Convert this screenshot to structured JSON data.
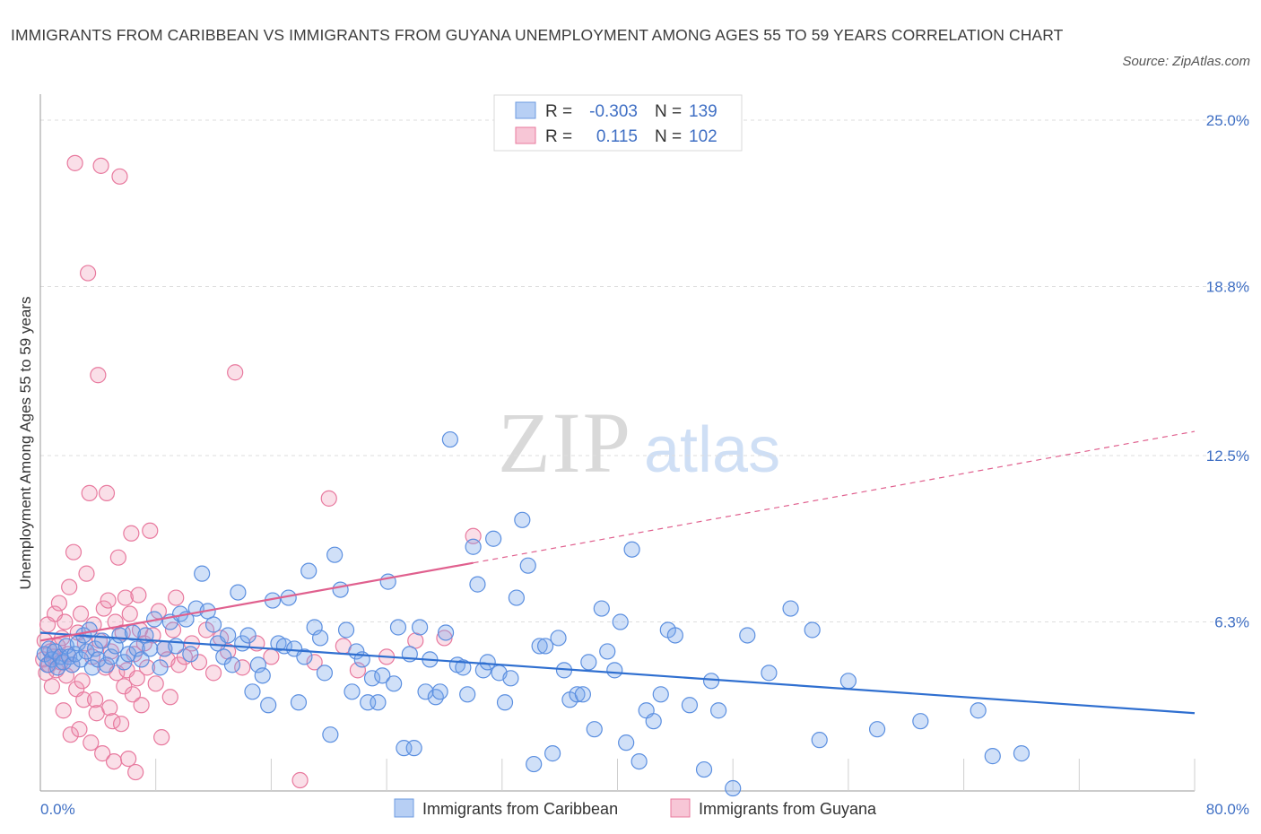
{
  "title": "IMMIGRANTS FROM CARIBBEAN VS IMMIGRANTS FROM GUYANA UNEMPLOYMENT AMONG AGES 55 TO 59 YEARS CORRELATION CHART",
  "source": "Source: ZipAtlas.com",
  "watermark": {
    "zip": "ZIP",
    "atlas": "atlas"
  },
  "colors": {
    "caribbean": "#5b8fe0",
    "caribbean_fill": "rgba(120,165,235,0.35)",
    "caribbean_line": "#2f6fd0",
    "guyana": "#e8799e",
    "guyana_fill": "rgba(240,150,180,0.30)",
    "guyana_line": "#e0608e",
    "tick": "#3f6fc4"
  },
  "legend": {
    "r_label": "R =",
    "n_label": "N =",
    "caribbean": {
      "r": "-0.303",
      "n": "139"
    },
    "guyana": {
      "r": "0.115",
      "n": "102"
    }
  },
  "chart_data": {
    "type": "scatter",
    "xlabel": "",
    "ylabel": "Unemployment Among Ages 55 to 59 years",
    "xlim": [
      0,
      80
    ],
    "ylim": [
      0,
      25
    ],
    "x_tick_labels": [
      "0.0%",
      "80.0%"
    ],
    "y_ticks": [
      {
        "value": 6.3,
        "label": "6.3%"
      },
      {
        "value": 12.5,
        "label": "12.5%"
      },
      {
        "value": 18.8,
        "label": "18.8%"
      },
      {
        "value": 25.0,
        "label": "25.0%"
      }
    ],
    "grid": true,
    "legend_position": "top-center",
    "series": [
      {
        "name": "Immigrants from Caribbean",
        "r": -0.303,
        "n": 139,
        "trend": {
          "x": [
            0,
            80
          ],
          "y": [
            5.9,
            2.9
          ]
        },
        "points": [
          [
            0.3,
            5.1
          ],
          [
            0.5,
            4.7
          ],
          [
            0.6,
            5.3
          ],
          [
            0.8,
            4.9
          ],
          [
            1.0,
            5.2
          ],
          [
            1.2,
            4.6
          ],
          [
            1.4,
            5.0
          ],
          [
            1.6,
            4.8
          ],
          [
            1.8,
            5.4
          ],
          [
            2.0,
            5.0
          ],
          [
            2.2,
            4.7
          ],
          [
            2.4,
            5.1
          ],
          [
            2.6,
            5.5
          ],
          [
            2.8,
            4.9
          ],
          [
            3.0,
            5.8
          ],
          [
            3.2,
            5.2
          ],
          [
            3.4,
            6.0
          ],
          [
            3.6,
            4.6
          ],
          [
            3.8,
            5.3
          ],
          [
            4.0,
            4.9
          ],
          [
            4.3,
            5.6
          ],
          [
            4.6,
            4.7
          ],
          [
            4.9,
            5.0
          ],
          [
            5.2,
            5.4
          ],
          [
            5.5,
            5.8
          ],
          [
            5.8,
            4.8
          ],
          [
            6.1,
            5.1
          ],
          [
            6.4,
            5.9
          ],
          [
            6.7,
            5.3
          ],
          [
            7.0,
            4.9
          ],
          [
            7.3,
            5.8
          ],
          [
            7.6,
            5.3
          ],
          [
            7.9,
            6.4
          ],
          [
            8.3,
            4.6
          ],
          [
            8.6,
            5.3
          ],
          [
            9.0,
            6.3
          ],
          [
            9.4,
            5.4
          ],
          [
            9.7,
            6.6
          ],
          [
            10.1,
            6.4
          ],
          [
            10.4,
            5.1
          ],
          [
            10.8,
            6.8
          ],
          [
            11.2,
            8.1
          ],
          [
            11.6,
            6.7
          ],
          [
            12.0,
            6.2
          ],
          [
            12.3,
            5.5
          ],
          [
            12.7,
            5.0
          ],
          [
            13.0,
            5.8
          ],
          [
            13.3,
            4.7
          ],
          [
            13.7,
            7.4
          ],
          [
            14.0,
            5.5
          ],
          [
            14.4,
            5.8
          ],
          [
            14.7,
            3.7
          ],
          [
            15.1,
            4.7
          ],
          [
            15.4,
            4.3
          ],
          [
            15.8,
            3.2
          ],
          [
            16.1,
            7.1
          ],
          [
            16.5,
            5.5
          ],
          [
            16.9,
            5.4
          ],
          [
            17.2,
            7.2
          ],
          [
            17.6,
            5.3
          ],
          [
            17.9,
            3.3
          ],
          [
            18.3,
            5.0
          ],
          [
            18.6,
            8.2
          ],
          [
            19.0,
            6.1
          ],
          [
            19.4,
            5.7
          ],
          [
            19.7,
            4.4
          ],
          [
            20.1,
            2.1
          ],
          [
            20.4,
            8.8
          ],
          [
            20.8,
            7.5
          ],
          [
            21.2,
            6.0
          ],
          [
            21.6,
            3.7
          ],
          [
            21.9,
            5.2
          ],
          [
            22.3,
            4.9
          ],
          [
            22.7,
            3.3
          ],
          [
            23.0,
            4.2
          ],
          [
            23.4,
            3.3
          ],
          [
            23.7,
            4.3
          ],
          [
            24.1,
            7.8
          ],
          [
            24.5,
            4.0
          ],
          [
            24.8,
            6.1
          ],
          [
            25.2,
            1.6
          ],
          [
            25.6,
            5.1
          ],
          [
            25.9,
            1.6
          ],
          [
            26.3,
            6.1
          ],
          [
            26.7,
            3.7
          ],
          [
            27.0,
            4.9
          ],
          [
            27.4,
            3.5
          ],
          [
            27.7,
            3.7
          ],
          [
            28.1,
            5.9
          ],
          [
            28.4,
            13.1
          ],
          [
            28.9,
            4.7
          ],
          [
            29.3,
            4.6
          ],
          [
            29.6,
            3.6
          ],
          [
            30.0,
            9.1
          ],
          [
            30.3,
            7.7
          ],
          [
            30.7,
            4.5
          ],
          [
            31.0,
            4.8
          ],
          [
            31.4,
            9.4
          ],
          [
            31.8,
            4.4
          ],
          [
            32.2,
            3.3
          ],
          [
            32.6,
            4.2
          ],
          [
            33.0,
            7.2
          ],
          [
            33.4,
            10.1
          ],
          [
            33.8,
            8.4
          ],
          [
            34.2,
            1.0
          ],
          [
            34.6,
            5.4
          ],
          [
            35.0,
            5.4
          ],
          [
            35.5,
            1.4
          ],
          [
            35.9,
            5.7
          ],
          [
            36.3,
            4.5
          ],
          [
            36.7,
            3.4
          ],
          [
            37.2,
            3.6
          ],
          [
            37.6,
            3.6
          ],
          [
            38.0,
            4.8
          ],
          [
            38.4,
            2.3
          ],
          [
            38.9,
            6.8
          ],
          [
            39.3,
            5.2
          ],
          [
            39.8,
            4.5
          ],
          [
            40.2,
            6.3
          ],
          [
            40.6,
            1.8
          ],
          [
            41.0,
            9.0
          ],
          [
            41.5,
            1.1
          ],
          [
            42.0,
            3.0
          ],
          [
            42.5,
            2.6
          ],
          [
            43.0,
            3.6
          ],
          [
            43.5,
            6.0
          ],
          [
            44.0,
            5.8
          ],
          [
            45.0,
            3.2
          ],
          [
            46.0,
            0.8
          ],
          [
            46.5,
            4.1
          ],
          [
            47.0,
            3.0
          ],
          [
            48.0,
            0.1
          ],
          [
            49.0,
            5.8
          ],
          [
            50.5,
            4.4
          ],
          [
            52.0,
            6.8
          ],
          [
            53.5,
            6.0
          ],
          [
            54.0,
            1.9
          ],
          [
            56.0,
            4.1
          ],
          [
            58.0,
            2.3
          ],
          [
            61.0,
            2.6
          ],
          [
            65.0,
            3.0
          ],
          [
            66.0,
            1.3
          ],
          [
            68.0,
            1.4
          ]
        ]
      },
      {
        "name": "Immigrants from Guyana",
        "r": 0.115,
        "n": 102,
        "trend_solid": {
          "x": [
            0,
            30
          ],
          "y": [
            5.6,
            8.5
          ]
        },
        "trend_dashed": {
          "x": [
            30,
            80
          ],
          "y": [
            8.5,
            13.4
          ]
        },
        "points": [
          [
            0.2,
            4.9
          ],
          [
            0.3,
            5.6
          ],
          [
            0.4,
            4.4
          ],
          [
            0.5,
            6.2
          ],
          [
            0.6,
            4.7
          ],
          [
            0.7,
            5.2
          ],
          [
            0.8,
            3.9
          ],
          [
            0.9,
            5.0
          ],
          [
            1.0,
            6.6
          ],
          [
            1.1,
            4.5
          ],
          [
            1.2,
            5.4
          ],
          [
            1.3,
            7.0
          ],
          [
            1.4,
            4.8
          ],
          [
            1.5,
            5.7
          ],
          [
            1.6,
            3.0
          ],
          [
            1.7,
            6.3
          ],
          [
            1.8,
            4.3
          ],
          [
            1.9,
            5.1
          ],
          [
            2.0,
            7.6
          ],
          [
            2.1,
            2.1
          ],
          [
            2.2,
            4.7
          ],
          [
            2.3,
            8.9
          ],
          [
            2.4,
            23.4
          ],
          [
            2.5,
            3.8
          ],
          [
            2.6,
            5.9
          ],
          [
            2.7,
            2.3
          ],
          [
            2.8,
            6.6
          ],
          [
            2.9,
            4.1
          ],
          [
            3.0,
            3.4
          ],
          [
            3.1,
            5.5
          ],
          [
            3.2,
            8.1
          ],
          [
            3.3,
            19.3
          ],
          [
            3.4,
            11.1
          ],
          [
            3.5,
            1.8
          ],
          [
            3.6,
            5.0
          ],
          [
            3.7,
            6.2
          ],
          [
            3.8,
            3.4
          ],
          [
            3.9,
            2.9
          ],
          [
            4.0,
            15.5
          ],
          [
            4.1,
            5.6
          ],
          [
            4.2,
            23.3
          ],
          [
            4.3,
            1.4
          ],
          [
            4.4,
            6.8
          ],
          [
            4.5,
            4.6
          ],
          [
            4.6,
            11.1
          ],
          [
            4.7,
            7.1
          ],
          [
            4.8,
            3.1
          ],
          [
            4.9,
            5.2
          ],
          [
            5.0,
            2.6
          ],
          [
            5.1,
            1.1
          ],
          [
            5.2,
            6.3
          ],
          [
            5.3,
            4.4
          ],
          [
            5.4,
            8.7
          ],
          [
            5.5,
            22.9
          ],
          [
            5.6,
            2.5
          ],
          [
            5.7,
            5.9
          ],
          [
            5.8,
            3.9
          ],
          [
            5.9,
            7.2
          ],
          [
            6.0,
            4.5
          ],
          [
            6.1,
            1.2
          ],
          [
            6.2,
            6.6
          ],
          [
            6.3,
            9.6
          ],
          [
            6.4,
            3.6
          ],
          [
            6.5,
            5.1
          ],
          [
            6.6,
            0.7
          ],
          [
            6.7,
            4.2
          ],
          [
            6.8,
            7.3
          ],
          [
            6.9,
            6.0
          ],
          [
            7.0,
            3.2
          ],
          [
            7.2,
            5.5
          ],
          [
            7.4,
            4.6
          ],
          [
            7.6,
            9.7
          ],
          [
            7.8,
            5.8
          ],
          [
            8.0,
            4.0
          ],
          [
            8.2,
            6.7
          ],
          [
            8.4,
            2.0
          ],
          [
            8.6,
            5.3
          ],
          [
            8.8,
            4.9
          ],
          [
            9.0,
            3.5
          ],
          [
            9.2,
            6.0
          ],
          [
            9.4,
            7.2
          ],
          [
            9.6,
            4.7
          ],
          [
            10.0,
            5.0
          ],
          [
            10.5,
            5.5
          ],
          [
            11.0,
            4.8
          ],
          [
            11.5,
            6.0
          ],
          [
            12.0,
            4.4
          ],
          [
            12.5,
            5.7
          ],
          [
            13.0,
            5.2
          ],
          [
            13.5,
            15.6
          ],
          [
            14.0,
            4.6
          ],
          [
            15.0,
            5.5
          ],
          [
            16.0,
            5.0
          ],
          [
            18.0,
            0.4
          ],
          [
            19.0,
            4.8
          ],
          [
            20.0,
            10.9
          ],
          [
            21.0,
            5.4
          ],
          [
            22.0,
            4.5
          ],
          [
            24.0,
            5.0
          ],
          [
            26.0,
            5.6
          ],
          [
            28.0,
            5.7
          ],
          [
            30.0,
            9.5
          ]
        ]
      }
    ]
  },
  "bottom_legend": [
    {
      "label": "Immigrants from Caribbean",
      "color_key": "caribbean"
    },
    {
      "label": "Immigrants from Guyana",
      "color_key": "guyana"
    }
  ]
}
